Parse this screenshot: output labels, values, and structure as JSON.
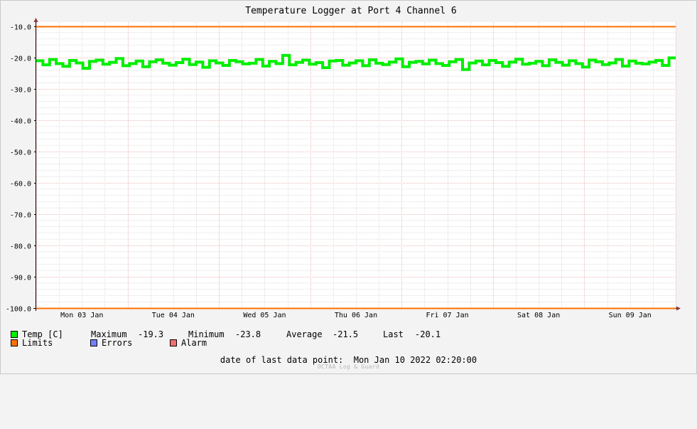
{
  "chart_data": {
    "type": "line",
    "title": "Temperature Logger at Port 4 Channel 6",
    "ylim": [
      -100,
      -10
    ],
    "y_ticks": [
      "-10.0",
      "-20.0",
      "-30.0",
      "-40.0",
      "-50.0",
      "-60.0",
      "-70.0",
      "-80.0",
      "-90.0",
      "-100.0"
    ],
    "y_tick_values": [
      -10,
      -20,
      -30,
      -40,
      -50,
      -60,
      -70,
      -80,
      -90,
      -100
    ],
    "x_range_days": [
      0,
      7
    ],
    "x_ticks": [
      "Mon 03 Jan",
      "Tue 04 Jan",
      "Wed 05 Jan",
      "Thu 06 Jan",
      "Fri 07 Jan",
      "Sat 08 Jan",
      "Sun 09 Jan"
    ],
    "grid": true,
    "series": [
      {
        "name": "Temp [C]",
        "color": "#00ee00",
        "band": [
          -23.8,
          -19.3
        ],
        "values": [
          -21.0,
          -22.3,
          -20.6,
          -21.9,
          -22.8,
          -20.9,
          -21.7,
          -23.4,
          -21.2,
          -20.8,
          -22.1,
          -21.5,
          -20.3,
          -22.6,
          -21.9,
          -21.1,
          -22.9,
          -21.3,
          -20.7,
          -21.8,
          -22.4,
          -21.6,
          -20.5,
          -22.2,
          -21.4,
          -23.1,
          -21.0,
          -21.7,
          -22.5,
          -20.9,
          -21.3,
          -22.0,
          -21.8,
          -20.6,
          -22.7,
          -21.2,
          -21.9,
          -19.3,
          -22.3,
          -21.5,
          -20.8,
          -22.1,
          -21.6,
          -23.2,
          -21.1,
          -20.9,
          -22.4,
          -21.7,
          -21.0,
          -22.6,
          -20.7,
          -21.8,
          -22.2,
          -21.4,
          -20.4,
          -22.9,
          -21.5,
          -21.2,
          -22.0,
          -20.8,
          -21.9,
          -22.5,
          -21.3,
          -20.6,
          -23.8,
          -21.7,
          -21.1,
          -22.3,
          -20.9,
          -21.6,
          -22.8,
          -21.4,
          -20.5,
          -22.1,
          -21.8,
          -21.2,
          -22.6,
          -20.7,
          -21.5,
          -22.4,
          -21.0,
          -21.9,
          -23.0,
          -20.8,
          -21.3,
          -22.2,
          -21.7,
          -20.6,
          -22.7,
          -21.1,
          -21.8,
          -22.0,
          -21.4,
          -20.9,
          -22.5,
          -20.1
        ]
      },
      {
        "name": "Limits",
        "color": "#ff7000",
        "lines": [
          -10,
          -100
        ]
      },
      {
        "name": "Errors",
        "color": "#7080ff"
      },
      {
        "name": "Alarm",
        "color": "#f07070"
      }
    ]
  },
  "legend": {
    "temp_label": "Temp [C]",
    "limits_label": "Limits",
    "errors_label": "Errors",
    "alarm_label": "Alarm",
    "max_label": "Maximum",
    "max_value": "-19.3",
    "min_label": "Minimum",
    "min_value": "-23.8",
    "avg_label": "Average",
    "avg_value": "-21.5",
    "last_label": "Last",
    "last_value": "-20.1"
  },
  "footer": {
    "last_point_label": "date of last data point:",
    "last_point_value": "Mon Jan 10 2022 02:20:00",
    "credit": "OCTAA Log & Guard"
  }
}
